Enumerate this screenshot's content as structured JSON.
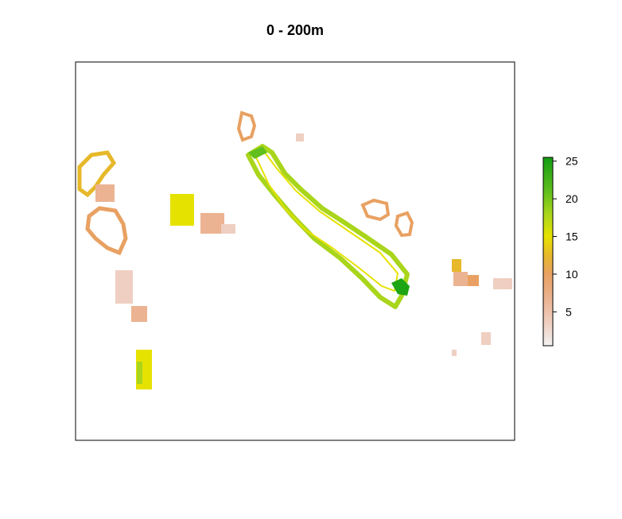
{
  "title": "0 - 200m",
  "legend": {
    "ticks": [
      5,
      10,
      15,
      20,
      25
    ],
    "min": 0.5,
    "max": 25.5,
    "palette": [
      "#f2f2f2",
      "#efcfc1",
      "#ebb391",
      "#e8a162",
      "#e6b82a",
      "#e6e200",
      "#a9d51b",
      "#60bf1c",
      "#1ea513",
      "#129c12"
    ]
  }
}
